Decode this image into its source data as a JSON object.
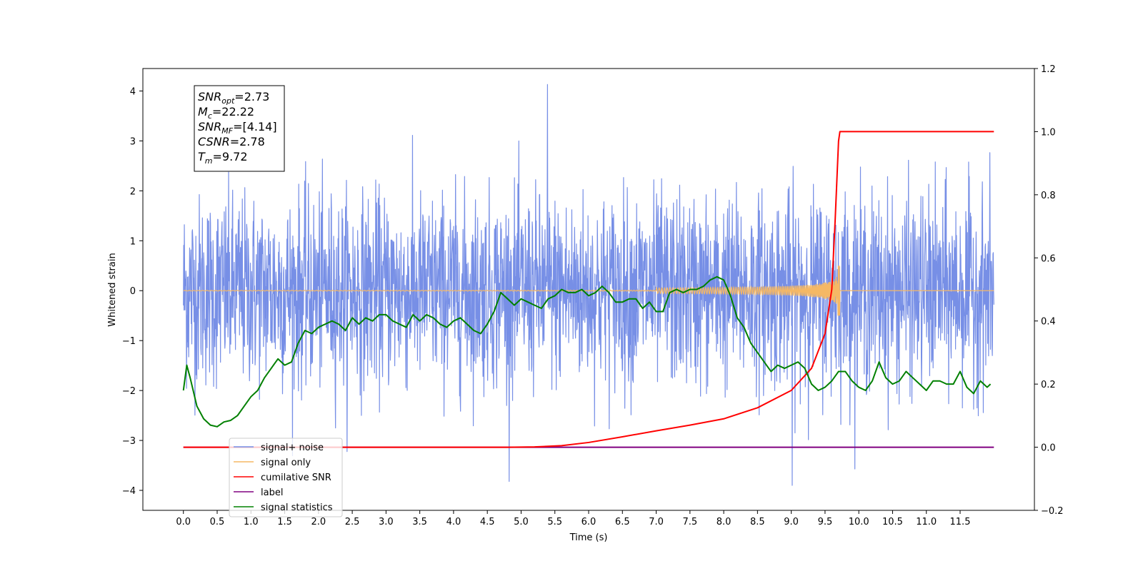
{
  "chart_data": {
    "type": "line",
    "xlabel": "Time (s)",
    "ylabel": "Whitened strain",
    "xlim": [
      -0.6,
      12.6
    ],
    "ylim": [
      -4.4,
      4.45
    ],
    "y2lim": [
      -0.2,
      1.2
    ],
    "x_ticks": [
      "0.0",
      "0.5",
      "1.0",
      "1.5",
      "2.0",
      "2.5",
      "3.0",
      "3.5",
      "4.0",
      "4.5",
      "5.0",
      "5.5",
      "6.0",
      "6.5",
      "7.0",
      "7.5",
      "8.0",
      "8.5",
      "9.0",
      "9.5",
      "10.0",
      "10.5",
      "11.0",
      "11.5"
    ],
    "y_ticks": [
      "4",
      "3",
      "2",
      "1",
      "0",
      "−1",
      "−2",
      "−3",
      "−4"
    ],
    "y2_ticks": [
      "1.2",
      "1.0",
      "0.8",
      "0.6",
      "0.4",
      "0.2",
      "0.0",
      "−0.2"
    ],
    "grid": false,
    "legend_position": "lower-left",
    "info_box": [
      {
        "base": "SNR",
        "sub": "opt",
        "value": "=2.73"
      },
      {
        "base": "M",
        "sub": "c",
        "value": "=22.22"
      },
      {
        "base": "SNR",
        "sub": "MF",
        "value": "=[4.14]"
      },
      {
        "base": "CSNR",
        "sub": "",
        "value": "=2.78"
      },
      {
        "base": "T",
        "sub": "m",
        "value": "=9.72"
      }
    ],
    "series": [
      {
        "name": "signal+ noise",
        "color": "#778fe6",
        "axis": "left",
        "description_x_range": [
          0.0,
          12.0
        ],
        "peaks": [
          4.13,
          -3.9
        ]
      },
      {
        "name": "signal only",
        "color": "#f5b865",
        "axis": "left",
        "merger_time": 9.72,
        "peak_amplitude": 0.5
      },
      {
        "name": "cumilative SNR",
        "color": "#ff0000",
        "axis": "right",
        "x": [
          0.0,
          4.8,
          5.2,
          5.6,
          6.0,
          6.5,
          7.0,
          7.5,
          8.0,
          8.5,
          9.0,
          9.3,
          9.5,
          9.6,
          9.65,
          9.7,
          9.72,
          12.0
        ],
        "y": [
          0.0,
          0.0,
          0.001,
          0.005,
          0.015,
          0.033,
          0.052,
          0.07,
          0.09,
          0.125,
          0.18,
          0.25,
          0.36,
          0.5,
          0.72,
          0.97,
          1.0,
          1.0
        ]
      },
      {
        "name": "label",
        "color": "#800080",
        "axis": "right",
        "x": [
          0.0,
          12.0
        ],
        "y": [
          0.0,
          0.0
        ]
      },
      {
        "name": "signal statistics",
        "color": "#008000",
        "axis": "right",
        "x": [
          0.0,
          0.05,
          0.1,
          0.2,
          0.3,
          0.4,
          0.5,
          0.6,
          0.7,
          0.8,
          0.9,
          1.0,
          1.1,
          1.2,
          1.3,
          1.4,
          1.5,
          1.6,
          1.7,
          1.8,
          1.9,
          2.0,
          2.1,
          2.2,
          2.3,
          2.4,
          2.5,
          2.6,
          2.7,
          2.8,
          2.9,
          3.0,
          3.1,
          3.2,
          3.3,
          3.4,
          3.5,
          3.6,
          3.7,
          3.8,
          3.9,
          4.0,
          4.1,
          4.2,
          4.3,
          4.4,
          4.5,
          4.6,
          4.7,
          4.8,
          4.9,
          5.0,
          5.1,
          5.2,
          5.3,
          5.4,
          5.5,
          5.6,
          5.7,
          5.8,
          5.9,
          6.0,
          6.1,
          6.2,
          6.3,
          6.4,
          6.5,
          6.6,
          6.7,
          6.8,
          6.9,
          7.0,
          7.1,
          7.2,
          7.3,
          7.4,
          7.5,
          7.6,
          7.7,
          7.8,
          7.9,
          8.0,
          8.1,
          8.2,
          8.3,
          8.4,
          8.5,
          8.6,
          8.7,
          8.8,
          8.9,
          9.0,
          9.1,
          9.2,
          9.3,
          9.4,
          9.5,
          9.6,
          9.7,
          9.8,
          9.9,
          10.0,
          10.1,
          10.2,
          10.3,
          10.4,
          10.5,
          10.6,
          10.7,
          10.8,
          10.9,
          11.0,
          11.1,
          11.2,
          11.3,
          11.4,
          11.5,
          11.6,
          11.7,
          11.8,
          11.9,
          11.95
        ],
        "y": [
          0.18,
          0.26,
          0.22,
          0.13,
          0.09,
          0.07,
          0.065,
          0.08,
          0.085,
          0.1,
          0.13,
          0.16,
          0.18,
          0.22,
          0.25,
          0.28,
          0.26,
          0.27,
          0.33,
          0.37,
          0.36,
          0.38,
          0.39,
          0.4,
          0.39,
          0.37,
          0.41,
          0.39,
          0.41,
          0.4,
          0.42,
          0.42,
          0.4,
          0.39,
          0.38,
          0.42,
          0.4,
          0.42,
          0.41,
          0.39,
          0.38,
          0.4,
          0.41,
          0.39,
          0.37,
          0.36,
          0.39,
          0.43,
          0.49,
          0.47,
          0.45,
          0.47,
          0.46,
          0.45,
          0.44,
          0.47,
          0.48,
          0.5,
          0.49,
          0.49,
          0.5,
          0.48,
          0.49,
          0.51,
          0.49,
          0.46,
          0.46,
          0.47,
          0.47,
          0.44,
          0.46,
          0.43,
          0.43,
          0.49,
          0.5,
          0.49,
          0.5,
          0.5,
          0.51,
          0.53,
          0.54,
          0.53,
          0.48,
          0.41,
          0.38,
          0.33,
          0.3,
          0.27,
          0.24,
          0.26,
          0.25,
          0.26,
          0.27,
          0.25,
          0.2,
          0.18,
          0.19,
          0.21,
          0.24,
          0.24,
          0.21,
          0.19,
          0.18,
          0.21,
          0.27,
          0.22,
          0.2,
          0.21,
          0.24,
          0.22,
          0.2,
          0.18,
          0.21,
          0.21,
          0.2,
          0.2,
          0.24,
          0.19,
          0.17,
          0.21,
          0.19,
          0.2
        ]
      }
    ]
  }
}
